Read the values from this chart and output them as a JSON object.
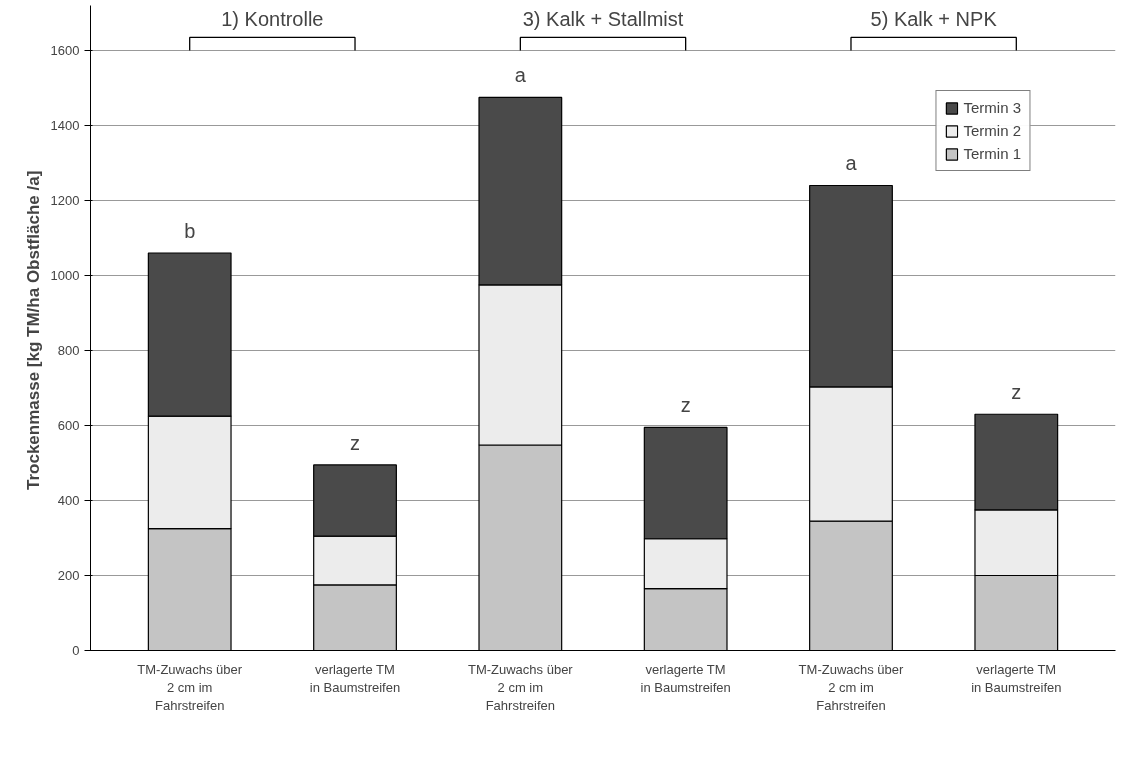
{
  "chart_data": {
    "type": "bar",
    "stacked": true,
    "ylabel": "Trockenmasse  [kg TM/ha Obstfläche /a]",
    "categories": [
      "TM-Zuwachs über\n2 cm im\nFahrstreifen",
      "verlagerte TM\nin Baumstreifen",
      "TM-Zuwachs über\n2 cm im\nFahrstreifen",
      "verlagerte TM\nin Baumstreifen",
      "TM-Zuwachs über\n2 cm im\nFahrstreifen",
      "verlagerte TM\nin Baumstreifen"
    ],
    "series": [
      {
        "name": "Termin 1",
        "color": "#c4c4c4",
        "values": [
          325,
          175,
          548,
          165,
          345,
          200
        ]
      },
      {
        "name": "Termin 2",
        "color": "#ececec",
        "values": [
          300,
          130,
          427,
          133,
          358,
          175
        ]
      },
      {
        "name": "Termin 3",
        "color": "#4a4a4a",
        "values": [
          435,
          190,
          500,
          297,
          537,
          255
        ]
      }
    ],
    "annotations": [
      "1) Kontrolle",
      "3) Kalk + Stallmist",
      "5) Kalk + NPK",
      "b",
      "z",
      "a",
      "z",
      "a",
      "z"
    ],
    "ylim": [
      0,
      1720
    ],
    "yticks": [
      0,
      200,
      400,
      600,
      800,
      1000,
      1200,
      1400,
      1600
    ],
    "grid": "y",
    "legend": "top right"
  }
}
